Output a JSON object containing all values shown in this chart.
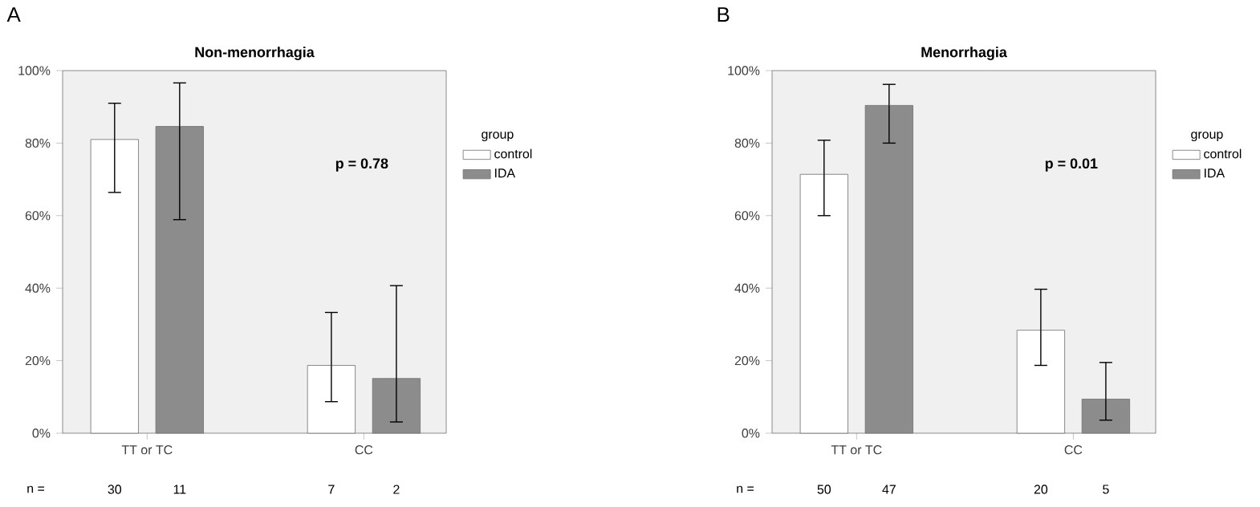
{
  "chart_data": [
    {
      "type": "bar",
      "title": "Non-menorrhagia",
      "categories": [
        "TT or TC",
        "CC"
      ],
      "series": [
        {
          "name": "control",
          "color": "#ffffff",
          "values": [
            81,
            18.7
          ],
          "errors": [
            [
              66.4,
              91
            ],
            [
              8.7,
              33.3
            ]
          ]
        },
        {
          "name": "IDA",
          "color": "#8c8c8c",
          "values": [
            84.6,
            15.1
          ],
          "errors": [
            [
              58.9,
              96.6
            ],
            [
              3.1,
              40.7
            ]
          ]
        }
      ],
      "ylim": [
        0,
        100
      ],
      "yticks": [
        {
          "value": 0,
          "label": "0%"
        },
        {
          "value": 20,
          "label": "20%"
        },
        {
          "value": 40,
          "label": "40%"
        },
        {
          "value": 60,
          "label": "60%"
        },
        {
          "value": 80,
          "label": "80%"
        },
        {
          "value": 100,
          "label": "100%"
        }
      ],
      "legend": "right",
      "legend_title": "group",
      "annotations": [
        "A",
        "p = 0.78",
        "n =",
        "30",
        "11",
        "7",
        "2"
      ]
    },
    {
      "type": "bar",
      "title": "Menorrhagia",
      "categories": [
        "TT or TC",
        "CC"
      ],
      "series": [
        {
          "name": "control",
          "color": "#ffffff",
          "values": [
            71.4,
            28.4
          ],
          "errors": [
            [
              60,
              80.8
            ],
            [
              18.7,
              39.7
            ]
          ]
        },
        {
          "name": "IDA",
          "color": "#8c8c8c",
          "values": [
            90.4,
            9.4
          ],
          "errors": [
            [
              80,
              96.2
            ],
            [
              3.6,
              19.5
            ]
          ]
        }
      ],
      "ylim": [
        0,
        100
      ],
      "yticks": [
        {
          "value": 0,
          "label": "0%"
        },
        {
          "value": 20,
          "label": "20%"
        },
        {
          "value": 40,
          "label": "40%"
        },
        {
          "value": 60,
          "label": "60%"
        },
        {
          "value": 80,
          "label": "80%"
        },
        {
          "value": 100,
          "label": "100%"
        }
      ],
      "legend": "right",
      "legend_title": "group",
      "annotations": [
        "B",
        "p = 0.01",
        "n =",
        "50",
        "47",
        "20",
        "5"
      ]
    }
  ]
}
